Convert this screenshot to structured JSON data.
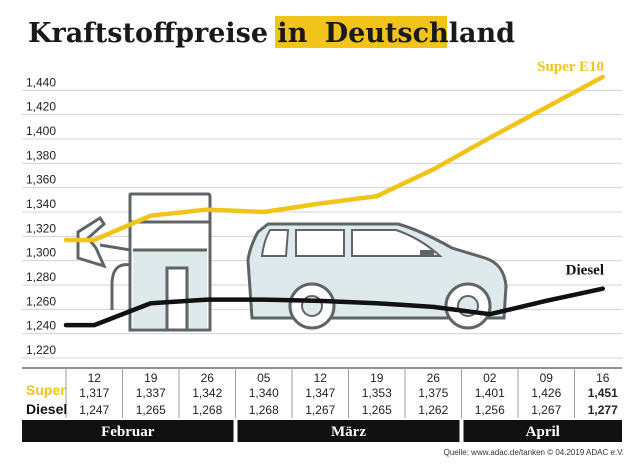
{
  "colors": {
    "super": "#f2c318",
    "diesel": "#111111",
    "highlight": "#f2c318",
    "illustration_fill": "#dde9ea",
    "illustration_stroke": "#5f6466",
    "bar": "#111111"
  },
  "title": {
    "part1": "Kraftstoffpreise in",
    "part2": "Deutschland"
  },
  "source": "Quelle: www.adac.de/tanken   © 04.2019  ADAC e.V.",
  "table": {
    "super_label": "Super",
    "diesel_label": "Diesel"
  },
  "chart_data": {
    "type": "line",
    "ylim": [
      1.22,
      1.46
    ],
    "y_ticks": [
      "1,440",
      "1,420",
      "1,400",
      "1,380",
      "1,360",
      "1,340",
      "1,320",
      "1,300",
      "1,280",
      "1,260",
      "1,240",
      "1,220"
    ],
    "y_tick_values": [
      1.44,
      1.42,
      1.4,
      1.38,
      1.36,
      1.34,
      1.32,
      1.3,
      1.28,
      1.26,
      1.24,
      1.22
    ],
    "categories": [
      "12",
      "19",
      "26",
      "05",
      "12",
      "19",
      "26",
      "02",
      "09",
      "16"
    ],
    "months": [
      {
        "name": "Februar",
        "from": 0,
        "to": 2
      },
      {
        "name": "März",
        "from": 3,
        "to": 6
      },
      {
        "name": "April",
        "from": 7,
        "to": 9
      }
    ],
    "series": [
      {
        "name": "Super E10",
        "row_label": "Super",
        "values": [
          1.317,
          1.337,
          1.342,
          1.34,
          1.347,
          1.353,
          1.375,
          1.401,
          1.426,
          1.451
        ],
        "labels": [
          "1,317",
          "1,337",
          "1,342",
          "1,340",
          "1,347",
          "1,353",
          "1,375",
          "1,401",
          "1,426",
          "1,451"
        ]
      },
      {
        "name": "Diesel",
        "row_label": "Diesel",
        "values": [
          1.247,
          1.265,
          1.268,
          1.268,
          1.267,
          1.265,
          1.262,
          1.256,
          1.267,
          1.277
        ],
        "labels": [
          "1,247",
          "1,265",
          "1,268",
          "1,268",
          "1,267",
          "1,265",
          "1,262",
          "1,256",
          "1,267",
          "1,277"
        ]
      }
    ],
    "grid": true
  }
}
